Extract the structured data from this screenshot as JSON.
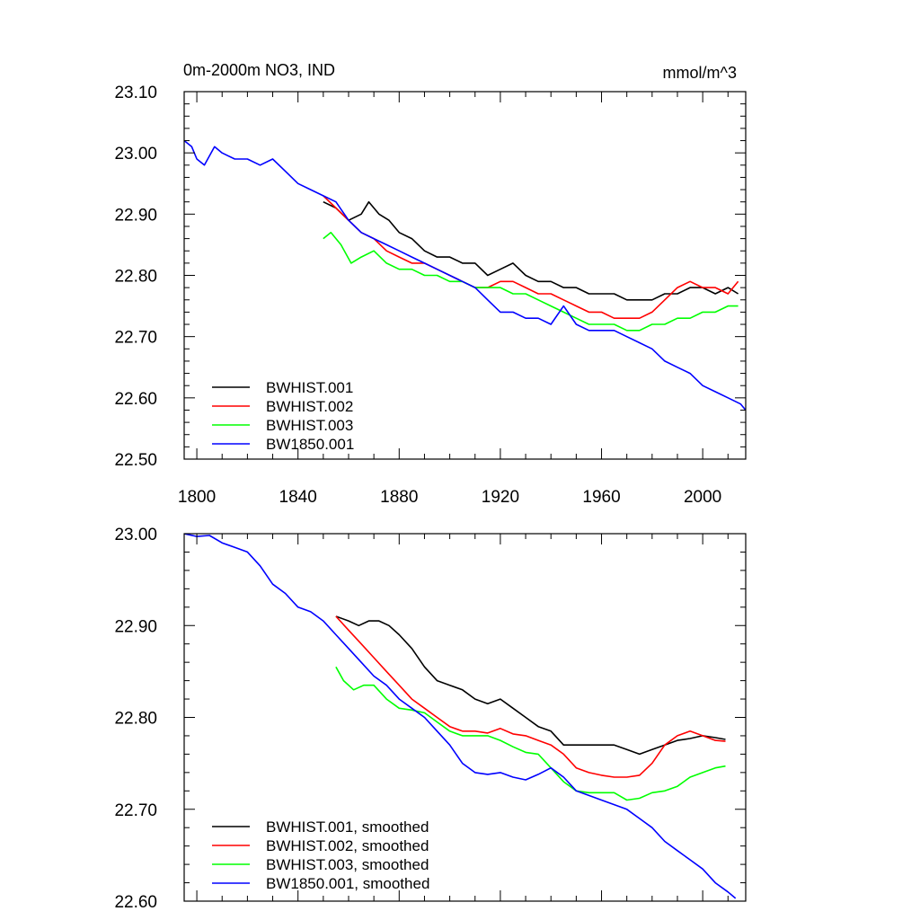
{
  "chart_data": [
    {
      "type": "line",
      "title": "0m-2000m NO3, IND",
      "units": "mmol/m^3",
      "xlim": [
        1795,
        2017
      ],
      "ylim": [
        22.5,
        23.1
      ],
      "xticks": [
        1800,
        1840,
        1880,
        1920,
        1960,
        2000
      ],
      "yticks": [
        22.5,
        22.6,
        22.7,
        22.8,
        22.9,
        23.0,
        23.1
      ],
      "ytick_labels": [
        "22.50",
        "22.60",
        "22.70",
        "22.80",
        "22.90",
        "23.00",
        "23.10"
      ],
      "legend_position": "bottom-left",
      "series": [
        {
          "name": "BWHIST.001",
          "color": "#000000",
          "x": [
            1850,
            1855,
            1860,
            1865,
            1868,
            1872,
            1876,
            1880,
            1885,
            1890,
            1895,
            1900,
            1905,
            1910,
            1915,
            1920,
            1925,
            1930,
            1935,
            1940,
            1945,
            1950,
            1955,
            1960,
            1965,
            1970,
            1975,
            1980,
            1985,
            1990,
            1995,
            2000,
            2005,
            2010,
            2014
          ],
          "y": [
            22.92,
            22.91,
            22.89,
            22.9,
            22.92,
            22.9,
            22.89,
            22.87,
            22.86,
            22.84,
            22.83,
            22.83,
            22.82,
            22.82,
            22.8,
            22.81,
            22.82,
            22.8,
            22.79,
            22.79,
            22.78,
            22.78,
            22.77,
            22.77,
            22.77,
            22.76,
            22.76,
            22.76,
            22.77,
            22.77,
            22.78,
            22.78,
            22.77,
            22.78,
            22.77
          ]
        },
        {
          "name": "BWHIST.002",
          "color": "#ff0000",
          "x": [
            1850,
            1855,
            1860,
            1865,
            1870,
            1875,
            1880,
            1885,
            1890,
            1895,
            1900,
            1905,
            1910,
            1915,
            1920,
            1925,
            1930,
            1935,
            1940,
            1945,
            1950,
            1955,
            1960,
            1965,
            1970,
            1975,
            1980,
            1985,
            1990,
            1995,
            2000,
            2005,
            2010,
            2014
          ],
          "y": [
            22.93,
            22.91,
            22.89,
            22.87,
            22.86,
            22.84,
            22.83,
            22.82,
            22.82,
            22.81,
            22.8,
            22.79,
            22.78,
            22.78,
            22.79,
            22.79,
            22.78,
            22.77,
            22.77,
            22.76,
            22.75,
            22.74,
            22.74,
            22.73,
            22.73,
            22.73,
            22.74,
            22.76,
            22.78,
            22.79,
            22.78,
            22.78,
            22.77,
            22.79
          ]
        },
        {
          "name": "BWHIST.003",
          "color": "#00ff00",
          "x": [
            1850,
            1853,
            1857,
            1861,
            1865,
            1870,
            1875,
            1880,
            1885,
            1890,
            1895,
            1900,
            1905,
            1910,
            1915,
            1920,
            1925,
            1930,
            1935,
            1940,
            1945,
            1950,
            1955,
            1960,
            1965,
            1970,
            1975,
            1980,
            1985,
            1990,
            1995,
            2000,
            2005,
            2010,
            2014
          ],
          "y": [
            22.86,
            22.87,
            22.85,
            22.82,
            22.83,
            22.84,
            22.82,
            22.81,
            22.81,
            22.8,
            22.8,
            22.79,
            22.79,
            22.78,
            22.78,
            22.78,
            22.77,
            22.77,
            22.76,
            22.75,
            22.74,
            22.73,
            22.72,
            22.72,
            22.72,
            22.71,
            22.71,
            22.72,
            22.72,
            22.73,
            22.73,
            22.74,
            22.74,
            22.75,
            22.75
          ]
        },
        {
          "name": "BW1850.001",
          "color": "#0000ff",
          "x": [
            1795,
            1798,
            1800,
            1803,
            1807,
            1810,
            1815,
            1820,
            1825,
            1830,
            1835,
            1840,
            1845,
            1850,
            1855,
            1860,
            1865,
            1870,
            1875,
            1880,
            1885,
            1890,
            1895,
            1900,
            1905,
            1910,
            1915,
            1920,
            1925,
            1930,
            1935,
            1940,
            1945,
            1950,
            1955,
            1960,
            1965,
            1970,
            1975,
            1980,
            1985,
            1990,
            1995,
            2000,
            2005,
            2010,
            2015,
            2017
          ],
          "y": [
            23.02,
            23.01,
            22.99,
            22.98,
            23.01,
            23.0,
            22.99,
            22.99,
            22.98,
            22.99,
            22.97,
            22.95,
            22.94,
            22.93,
            22.92,
            22.89,
            22.87,
            22.86,
            22.85,
            22.84,
            22.83,
            22.82,
            22.81,
            22.8,
            22.79,
            22.78,
            22.76,
            22.74,
            22.74,
            22.73,
            22.73,
            22.72,
            22.75,
            22.72,
            22.71,
            22.71,
            22.71,
            22.7,
            22.69,
            22.68,
            22.66,
            22.65,
            22.64,
            22.62,
            22.61,
            22.6,
            22.59,
            22.58
          ]
        }
      ]
    },
    {
      "type": "line",
      "xlim": [
        1795,
        2017
      ],
      "ylim": [
        22.6,
        23.0
      ],
      "xticks": [
        1800,
        1840,
        1880,
        1920,
        1960,
        2000
      ],
      "yticks": [
        22.6,
        22.7,
        22.8,
        22.9,
        23.0
      ],
      "ytick_labels": [
        "22.60",
        "22.70",
        "22.80",
        "22.90",
        "23.00"
      ],
      "legend_position": "bottom-left",
      "series": [
        {
          "name": "BWHIST.001, smoothed",
          "color": "#000000",
          "x": [
            1855,
            1860,
            1864,
            1868,
            1872,
            1876,
            1880,
            1885,
            1890,
            1895,
            1900,
            1905,
            1910,
            1915,
            1920,
            1925,
            1930,
            1935,
            1940,
            1945,
            1950,
            1955,
            1960,
            1965,
            1970,
            1975,
            1980,
            1985,
            1990,
            1995,
            2000,
            2005,
            2009
          ],
          "y": [
            22.91,
            22.905,
            22.9,
            22.905,
            22.905,
            22.9,
            22.89,
            22.875,
            22.855,
            22.84,
            22.835,
            22.83,
            22.82,
            22.815,
            22.82,
            22.81,
            22.8,
            22.79,
            22.785,
            22.77,
            22.77,
            22.77,
            22.77,
            22.77,
            22.765,
            22.76,
            22.765,
            22.77,
            22.775,
            22.777,
            22.78,
            22.778,
            22.776
          ]
        },
        {
          "name": "BWHIST.002, smoothed",
          "color": "#ff0000",
          "x": [
            1855,
            1860,
            1865,
            1870,
            1875,
            1880,
            1885,
            1890,
            1895,
            1900,
            1905,
            1910,
            1915,
            1920,
            1925,
            1930,
            1935,
            1940,
            1945,
            1950,
            1955,
            1960,
            1965,
            1970,
            1975,
            1980,
            1985,
            1990,
            1995,
            2000,
            2005,
            2009
          ],
          "y": [
            22.91,
            22.895,
            22.88,
            22.865,
            22.85,
            22.835,
            22.82,
            22.81,
            22.8,
            22.79,
            22.785,
            22.785,
            22.783,
            22.788,
            22.782,
            22.78,
            22.775,
            22.77,
            22.76,
            22.745,
            22.74,
            22.737,
            22.735,
            22.735,
            22.737,
            22.75,
            22.77,
            22.78,
            22.785,
            22.78,
            22.775,
            22.774
          ]
        },
        {
          "name": "BWHIST.003, smoothed",
          "color": "#00ff00",
          "x": [
            1855,
            1858,
            1862,
            1866,
            1870,
            1875,
            1880,
            1885,
            1890,
            1895,
            1900,
            1905,
            1910,
            1915,
            1920,
            1925,
            1930,
            1935,
            1940,
            1945,
            1950,
            1955,
            1960,
            1965,
            1970,
            1975,
            1980,
            1985,
            1990,
            1995,
            2000,
            2005,
            2009
          ],
          "y": [
            22.855,
            22.84,
            22.83,
            22.835,
            22.835,
            22.82,
            22.81,
            22.808,
            22.805,
            22.795,
            22.785,
            22.78,
            22.78,
            22.78,
            22.775,
            22.768,
            22.762,
            22.76,
            22.745,
            22.73,
            22.72,
            22.718,
            22.718,
            22.718,
            22.71,
            22.712,
            22.718,
            22.72,
            22.725,
            22.735,
            22.74,
            22.745,
            22.747
          ]
        },
        {
          "name": "BW1850.001, smoothed",
          "color": "#0000ff",
          "x": [
            1795,
            1800,
            1805,
            1810,
            1815,
            1820,
            1825,
            1830,
            1835,
            1840,
            1845,
            1850,
            1855,
            1860,
            1865,
            1870,
            1875,
            1880,
            1885,
            1890,
            1895,
            1900,
            1905,
            1910,
            1915,
            1920,
            1925,
            1930,
            1935,
            1940,
            1945,
            1950,
            1955,
            1960,
            1965,
            1970,
            1975,
            1980,
            1985,
            1990,
            1995,
            2000,
            2005,
            2010,
            2013
          ],
          "y": [
            23.0,
            22.997,
            22.998,
            22.99,
            22.985,
            22.98,
            22.965,
            22.945,
            22.935,
            22.92,
            22.915,
            22.905,
            22.89,
            22.875,
            22.86,
            22.845,
            22.835,
            22.82,
            22.81,
            22.8,
            22.785,
            22.77,
            22.75,
            22.74,
            22.738,
            22.74,
            22.735,
            22.732,
            22.738,
            22.745,
            22.735,
            22.72,
            22.715,
            22.71,
            22.705,
            22.7,
            22.69,
            22.68,
            22.665,
            22.655,
            22.645,
            22.635,
            22.62,
            22.61,
            22.603
          ]
        }
      ]
    }
  ]
}
